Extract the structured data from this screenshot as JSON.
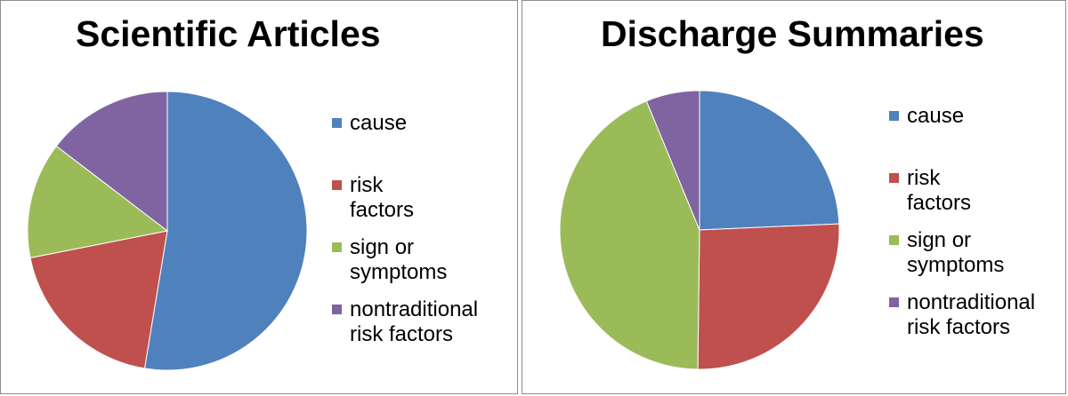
{
  "chart_data": [
    {
      "type": "pie",
      "title": "Scientific Articles",
      "categories": [
        "cause",
        "risk factors",
        "sign or\nsymptoms",
        "nontraditional\nrisk factors"
      ],
      "values": [
        52.6,
        19.3,
        13.5,
        14.6
      ],
      "colors": [
        "#4f81bd",
        "#c0504d",
        "#9bbb59",
        "#8064a2"
      ],
      "legend": "right"
    },
    {
      "type": "pie",
      "title": "Discharge Summaries",
      "categories": [
        "cause",
        "risk factors",
        "sign or\nsymptoms",
        "nontraditional\nrisk factors"
      ],
      "values": [
        24.3,
        25.9,
        43.6,
        6.2
      ],
      "colors": [
        "#4f81bd",
        "#c0504d",
        "#9bbb59",
        "#8064a2"
      ],
      "legend": "right"
    }
  ]
}
